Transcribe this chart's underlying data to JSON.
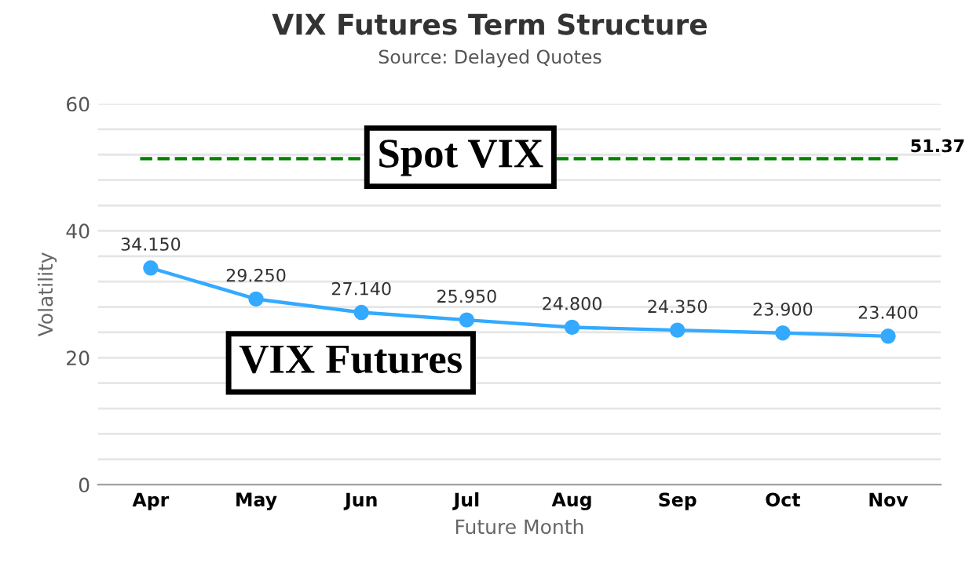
{
  "chart_data": {
    "type": "line",
    "title": "VIX Futures Term Structure",
    "subtitle": "Source: Delayed Quotes",
    "xlabel": "Future Month",
    "ylabel": "Volatility",
    "categories": [
      "Apr",
      "May",
      "Jun",
      "Jul",
      "Aug",
      "Sep",
      "Oct",
      "Nov"
    ],
    "series": [
      {
        "color": "#33aaff",
        "values": [
          34.15,
          29.25,
          27.14,
          25.95,
          24.8,
          24.35,
          23.9,
          23.4
        ],
        "value_labels": [
          "34.150",
          "29.250",
          "27.140",
          "25.950",
          "24.800",
          "24.350",
          "23.900",
          "23.400"
        ]
      }
    ],
    "ylim": [
      0,
      60
    ],
    "yticks": [
      0,
      {
        "value": 4,
        "label": null
      },
      {
        "value": 8,
        "label": null
      },
      {
        "value": 12,
        "label": null
      },
      {
        "value": 16,
        "label": null
      },
      20,
      {
        "value": 24,
        "label": null
      },
      {
        "value": 28,
        "label": null
      },
      {
        "value": 32,
        "label": null
      },
      {
        "value": 36,
        "label": null
      },
      40,
      {
        "value": 44,
        "label": null
      },
      {
        "value": 48,
        "label": null
      },
      {
        "value": 52,
        "label": null
      },
      {
        "value": 56,
        "label": null
      },
      60
    ],
    "ref_lines": [
      {
        "axis": "y",
        "value": 51.37,
        "label": "51.37",
        "color": "#008000",
        "line_style": "dashed"
      }
    ],
    "annotations": [
      "Spot VIX",
      "VIX Futures"
    ],
    "grid": "y",
    "marker": "circle",
    "line_style": "solid",
    "legend": false
  }
}
